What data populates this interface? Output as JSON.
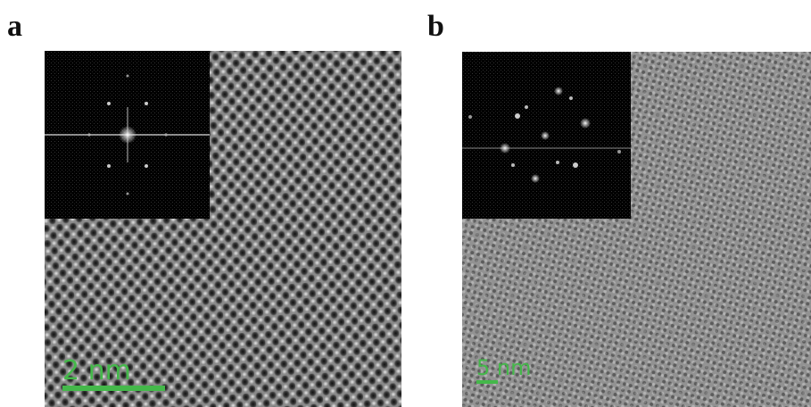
{
  "panels": [
    {
      "label": "a",
      "scale_bar": "2 nm"
    },
    {
      "label": "b",
      "scale_bar": "5 nm"
    }
  ]
}
